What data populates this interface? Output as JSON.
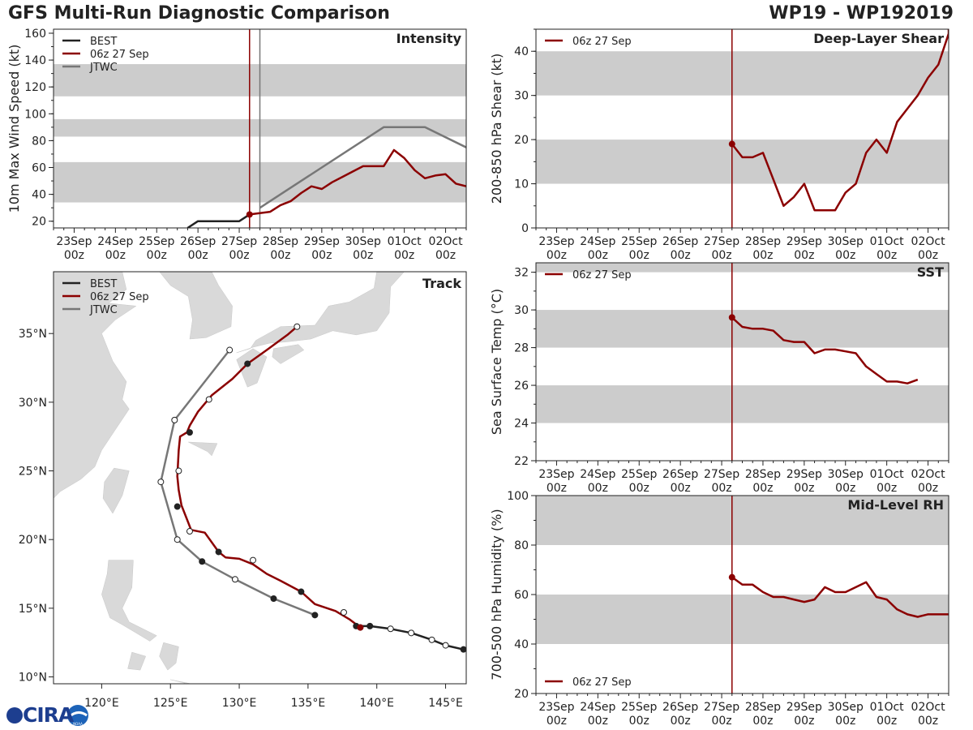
{
  "header": {
    "title": "GFS Multi-Run Diagnostic Comparison",
    "storm_id": "WP19 - WP192019"
  },
  "logo": {
    "text": "CIRA",
    "subtext": "NOAA"
  },
  "colors": {
    "best": "#222222",
    "run": "#8b0000",
    "jtwc": "#777777",
    "band": "#cccccc",
    "marker": "#8b0000"
  },
  "chart_data": [
    {
      "id": "intensity",
      "type": "line",
      "title": "Intensity",
      "ylabel": "10m Max Wind Speed (kt)",
      "ylim": [
        15,
        163
      ],
      "yticks": [
        20,
        40,
        60,
        80,
        100,
        120,
        140,
        160
      ],
      "xlim": [
        -0.5,
        9.5
      ],
      "xticks": [
        "23Sep\n00z",
        "24Sep\n00z",
        "25Sep\n00z",
        "26Sep\n00z",
        "27Sep\n00z",
        "28Sep\n00z",
        "29Sep\n00z",
        "30Sep\n00z",
        "01Oct\n00z",
        "02Oct\n00z"
      ],
      "bands": [
        [
          34,
          64
        ],
        [
          83,
          96
        ],
        [
          113,
          137
        ]
      ],
      "vlines": [
        {
          "x": 4.25,
          "color": "#8b0000"
        },
        {
          "x": 4.5,
          "color": "#777777"
        }
      ],
      "legend": [
        "BEST",
        "06z 27 Sep",
        "JTWC"
      ],
      "series": [
        {
          "name": "BEST",
          "color": "#222222",
          "x": [
            2.75,
            3.0,
            4.0,
            4.25
          ],
          "y": [
            15,
            20,
            20,
            25
          ]
        },
        {
          "name": "06z 27 Sep",
          "color": "#8b0000",
          "marker_at_start": true,
          "x": [
            4.25,
            4.5,
            4.75,
            5.0,
            5.25,
            5.5,
            5.75,
            6.0,
            6.25,
            6.5,
            6.75,
            7.0,
            7.25,
            7.5,
            7.75,
            8.0,
            8.25,
            8.5,
            8.75,
            9.0,
            9.25,
            9.5
          ],
          "y": [
            25,
            26,
            27,
            32,
            35,
            41,
            46,
            44,
            49,
            53,
            57,
            61,
            61,
            61,
            73,
            67,
            58,
            52,
            54,
            55,
            48,
            46
          ]
        },
        {
          "name": "JTWC",
          "color": "#777777",
          "x": [
            4.5,
            5.0,
            7.5,
            8.5,
            9.5
          ],
          "y": [
            30,
            40,
            90,
            90,
            75
          ]
        }
      ]
    },
    {
      "id": "shear",
      "type": "line",
      "title": "Deep-Layer Shear",
      "ylabel": "200-850 hPa Shear (kt)",
      "ylim": [
        0,
        45
      ],
      "yticks": [
        0,
        10,
        20,
        30,
        40
      ],
      "xlim": [
        -0.5,
        9.5
      ],
      "bands": [
        [
          10,
          20
        ],
        [
          30,
          40
        ]
      ],
      "vlines": [
        {
          "x": 4.25,
          "color": "#8b0000"
        }
      ],
      "legend": [
        "06z 27 Sep"
      ],
      "series": [
        {
          "name": "06z 27 Sep",
          "color": "#8b0000",
          "marker_at_start": true,
          "x": [
            4.25,
            4.5,
            4.75,
            5.0,
            5.25,
            5.5,
            5.75,
            6.0,
            6.25,
            6.5,
            6.75,
            7.0,
            7.25,
            7.5,
            7.75,
            8.0,
            8.25,
            8.5,
            8.75,
            9.0,
            9.25,
            9.5,
            9.5
          ],
          "y": [
            19,
            16,
            16,
            17,
            11,
            5,
            7,
            10,
            4,
            4,
            4,
            8,
            10,
            17,
            20,
            17,
            24,
            27,
            30,
            34,
            37,
            44,
            45
          ]
        }
      ]
    },
    {
      "id": "sst",
      "type": "line",
      "title": "SST",
      "ylabel": "Sea Surface Temp (°C)",
      "ylim": [
        22,
        32.5
      ],
      "yticks": [
        22,
        24,
        26,
        28,
        30,
        32
      ],
      "xlim": [
        -0.5,
        9.5
      ],
      "bands": [
        [
          24,
          26
        ],
        [
          28,
          30
        ],
        [
          32,
          32.5
        ]
      ],
      "vlines": [
        {
          "x": 4.25,
          "color": "#8b0000"
        }
      ],
      "legend": [
        "06z 27 Sep"
      ],
      "series": [
        {
          "name": "06z 27 Sep",
          "color": "#8b0000",
          "marker_at_start": true,
          "x": [
            4.25,
            4.5,
            4.75,
            5.0,
            5.25,
            5.5,
            5.75,
            6.0,
            6.25,
            6.5,
            6.75,
            7.0,
            7.25,
            7.5,
            7.75,
            8.0,
            8.25,
            8.5,
            8.75
          ],
          "y": [
            29.6,
            29.1,
            29.0,
            29.0,
            28.9,
            28.4,
            28.3,
            28.3,
            27.7,
            27.9,
            27.9,
            27.8,
            27.7,
            27.0,
            26.6,
            26.2,
            26.2,
            26.1,
            26.3
          ]
        }
      ]
    },
    {
      "id": "rh",
      "type": "line",
      "title": "Mid-Level RH",
      "ylabel": "700-500 hPa Humidity (%)",
      "ylim": [
        20,
        100
      ],
      "yticks": [
        20,
        40,
        60,
        80,
        100
      ],
      "xlim": [
        -0.5,
        9.5
      ],
      "xticks": [
        "23Sep\n00z",
        "24Sep\n00z",
        "25Sep\n00z",
        "26Sep\n00z",
        "27Sep\n00z",
        "28Sep\n00z",
        "29Sep\n00z",
        "30Sep\n00z",
        "01Oct\n00z",
        "02Oct\n00z"
      ],
      "bands": [
        [
          40,
          60
        ],
        [
          80,
          100
        ]
      ],
      "vlines": [
        {
          "x": 4.25,
          "color": "#8b0000"
        }
      ],
      "legend": [
        "06z 27 Sep"
      ],
      "legend_pos": "bottom-left",
      "series": [
        {
          "name": "06z 27 Sep",
          "color": "#8b0000",
          "marker_at_start": true,
          "x": [
            4.25,
            4.5,
            4.75,
            5.0,
            5.25,
            5.5,
            5.75,
            6.0,
            6.25,
            6.5,
            6.75,
            7.0,
            7.25,
            7.5,
            7.75,
            8.0,
            8.25,
            8.5,
            8.75,
            9.0,
            9.25,
            9.5
          ],
          "y": [
            67,
            64,
            64,
            61,
            59,
            59,
            58,
            57,
            58,
            63,
            61,
            61,
            63,
            65,
            59,
            58,
            54,
            52,
            51,
            52,
            52,
            52
          ]
        }
      ]
    },
    {
      "id": "track",
      "type": "map",
      "title": "Track",
      "lon_range": [
        116.5,
        146.5
      ],
      "lat_range": [
        9.5,
        39.5
      ],
      "lon_ticks": [
        "120°E",
        "125°E",
        "130°E",
        "135°E",
        "140°E",
        "145°E"
      ],
      "lon_tick_values": [
        120,
        125,
        130,
        135,
        140,
        145
      ],
      "lat_ticks": [
        "10°N",
        "15°N",
        "20°N",
        "25°N",
        "30°N",
        "35°N"
      ],
      "lat_tick_values": [
        10,
        15,
        20,
        25,
        30,
        35
      ],
      "legend": [
        "BEST",
        "06z 27 Sep",
        "JTWC"
      ],
      "best": {
        "lon": [
          146.3,
          145.0,
          144.0,
          142.5,
          141.0,
          139.5,
          138.5
        ],
        "lat": [
          12.0,
          12.3,
          12.7,
          13.2,
          13.5,
          13.7,
          13.7
        ],
        "filled": [
          true,
          false,
          false,
          false,
          false,
          true,
          true
        ]
      },
      "run": {
        "lon": [
          138.8,
          138.0,
          137.0,
          135.5,
          134.5,
          133.0,
          132.0,
          131.0,
          130.0,
          129.0,
          128.5,
          127.5,
          126.5,
          125.8,
          125.6,
          125.5,
          125.6,
          125.7,
          126.2,
          126.4,
          127.0,
          128.0,
          129.5,
          130.6,
          132.0,
          133.5,
          134.2
        ],
        "lat": [
          13.6,
          14.2,
          14.8,
          15.3,
          16.2,
          17.0,
          17.5,
          18.2,
          18.6,
          18.7,
          19.1,
          20.5,
          20.7,
          22.5,
          23.6,
          24.6,
          26.5,
          27.5,
          27.8,
          28.3,
          29.3,
          30.5,
          31.7,
          32.8,
          33.8,
          34.9,
          35.5
        ],
        "markers": {
          "lon": [
            138.8,
            137.6,
            134.5,
            131.0,
            128.5,
            126.4,
            125.5,
            125.6,
            126.4,
            127.8,
            130.6,
            134.2
          ],
          "lat": [
            13.6,
            14.7,
            16.2,
            18.5,
            19.1,
            20.6,
            22.4,
            25.0,
            27.8,
            30.2,
            32.8,
            35.5
          ],
          "filled": [
            true,
            false,
            true,
            false,
            true,
            false,
            true,
            false,
            true,
            false,
            true,
            false
          ]
        }
      },
      "jtwc": {
        "lon": [
          135.5,
          132.5,
          129.7,
          127.3,
          125.5,
          124.3,
          125.3,
          129.3
        ],
        "lat": [
          14.5,
          15.7,
          17.1,
          18.4,
          20.0,
          24.2,
          28.7,
          33.8
        ],
        "filled": [
          true,
          true,
          false,
          true,
          false,
          false,
          false,
          false
        ]
      }
    }
  ]
}
